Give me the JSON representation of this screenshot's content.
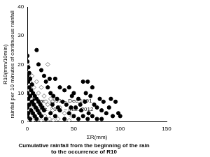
{
  "chart_data": {
    "type": "scatter",
    "y_label": [
      "R10(mm/10min)",
      "rainfall per 10 minutes of continuous rainfall"
    ],
    "x_label": "ΣR(mm)",
    "caption": [
      "Cumulative rainfall from the beginning of the rain",
      "to the occurrence of R10"
    ],
    "xlim": [
      0,
      150
    ],
    "xticks": [
      0,
      50,
      100,
      150
    ],
    "ylim": [
      0,
      40
    ],
    "yticks": [
      0,
      10,
      20,
      30,
      40
    ],
    "grid": false,
    "legend": "upper right",
    "series": [
      {
        "name": "Jan. 1991 – Dec.1991",
        "color": "#000000",
        "marker": "circle",
        "x": [
          0,
          0,
          1,
          2,
          0,
          3,
          1,
          5,
          2,
          4,
          0,
          6,
          3,
          8,
          1,
          10,
          5,
          12,
          2,
          7,
          14,
          0,
          9,
          16,
          4,
          11,
          18,
          1,
          6,
          13,
          0,
          8,
          15,
          3,
          10,
          20,
          10,
          12,
          15,
          18,
          20,
          22,
          25,
          24,
          28,
          30,
          32,
          35,
          38,
          40,
          42,
          45,
          48,
          50,
          52,
          55,
          58,
          60,
          62,
          65,
          66,
          68,
          70,
          72,
          75,
          78,
          80,
          82,
          85,
          88,
          90,
          92,
          95,
          98,
          100,
          25,
          30,
          35,
          40,
          45,
          50,
          55,
          60,
          65,
          70,
          75,
          80,
          27,
          33,
          47,
          57,
          63
        ],
        "values": [
          23,
          21,
          19,
          17,
          16,
          15,
          14,
          13,
          12,
          11,
          10,
          10,
          9,
          9,
          8,
          8,
          7,
          7,
          6,
          6,
          6,
          5,
          5,
          5,
          4,
          4,
          4,
          3,
          3,
          3,
          2,
          2,
          2,
          1,
          1,
          1,
          25,
          20,
          18,
          16,
          14,
          12,
          10,
          15,
          9,
          15,
          8,
          12,
          7,
          11,
          6,
          12,
          9,
          10,
          5,
          8,
          4,
          14,
          7,
          14,
          3,
          9,
          12,
          6,
          5,
          8,
          4,
          7,
          3,
          5,
          8,
          2,
          7,
          3,
          2,
          3,
          2,
          4,
          1,
          3,
          2,
          1,
          2,
          1,
          2,
          1,
          1,
          6,
          5,
          5,
          6,
          10
        ]
      },
      {
        "name": "Dec. 2011 – Mar. 2012",
        "color": "#808080",
        "marker": "open_diamond",
        "x": [
          0,
          22,
          1,
          5,
          3,
          10,
          0,
          7,
          15,
          2,
          12,
          0,
          6,
          18,
          4,
          25,
          30,
          1,
          9,
          20,
          3,
          14,
          22,
          0,
          8,
          17,
          35,
          2,
          11,
          27,
          5,
          13,
          40,
          0,
          7,
          19,
          48,
          3,
          10,
          24,
          33,
          1,
          6,
          15,
          28,
          45
        ],
        "values": [
          20,
          20,
          17,
          16,
          14,
          14,
          12,
          12,
          12,
          11,
          10,
          9,
          9,
          9,
          8,
          8,
          8,
          7,
          7,
          7,
          6,
          6,
          6,
          5,
          5,
          5,
          5,
          4,
          4,
          4,
          3,
          3,
          3,
          2,
          2,
          2,
          2,
          1,
          1,
          1,
          1,
          0.5,
          0.5,
          0.5,
          0.5,
          0.5
        ]
      }
    ]
  }
}
